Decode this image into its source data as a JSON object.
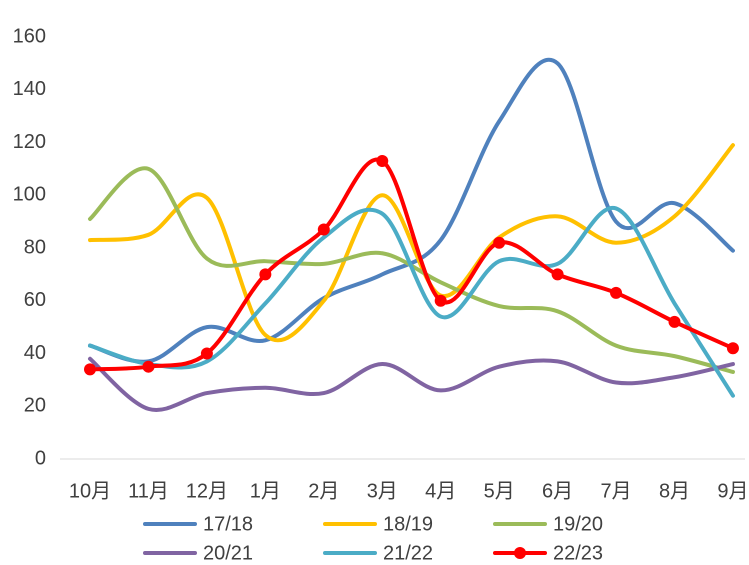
{
  "chart_data": {
    "type": "line",
    "categories": [
      "10月",
      "11月",
      "12月",
      "1月",
      "2月",
      "3月",
      "4月",
      "5月",
      "6月",
      "7月",
      "8月",
      "9月"
    ],
    "series": [
      {
        "name": "17/18",
        "color": "#4f81bd",
        "values": [
          43,
          37,
          50,
          45,
          61,
          70,
          83,
          128,
          150,
          90,
          97,
          79
        ]
      },
      {
        "name": "18/19",
        "color": "#ffc000",
        "values": [
          83,
          85,
          99,
          47,
          60,
          100,
          62,
          84,
          92,
          82,
          92,
          119
        ]
      },
      {
        "name": "19/20",
        "color": "#9bbb59",
        "values": [
          91,
          110,
          76,
          75,
          74,
          78,
          67,
          58,
          56,
          43,
          39,
          33
        ]
      },
      {
        "name": "20/21",
        "color": "#8064a2",
        "values": [
          38,
          19,
          25,
          27,
          25,
          36,
          26,
          35,
          37,
          29,
          31,
          36
        ]
      },
      {
        "name": "21/22",
        "color": "#4bacc6",
        "values": [
          43,
          36,
          37,
          59,
          84,
          93,
          54,
          75,
          74,
          95,
          59,
          24
        ]
      },
      {
        "name": "22/23",
        "color": "#ff0000",
        "markers": true,
        "values": [
          34,
          35,
          40,
          70,
          87,
          113,
          60,
          82,
          70,
          63,
          52,
          42
        ]
      }
    ],
    "ylim": [
      0,
      160
    ],
    "yticks": [
      0,
      20,
      40,
      60,
      80,
      100,
      120,
      140,
      160
    ],
    "grid": false,
    "smooth": true,
    "legend": "bottom"
  }
}
